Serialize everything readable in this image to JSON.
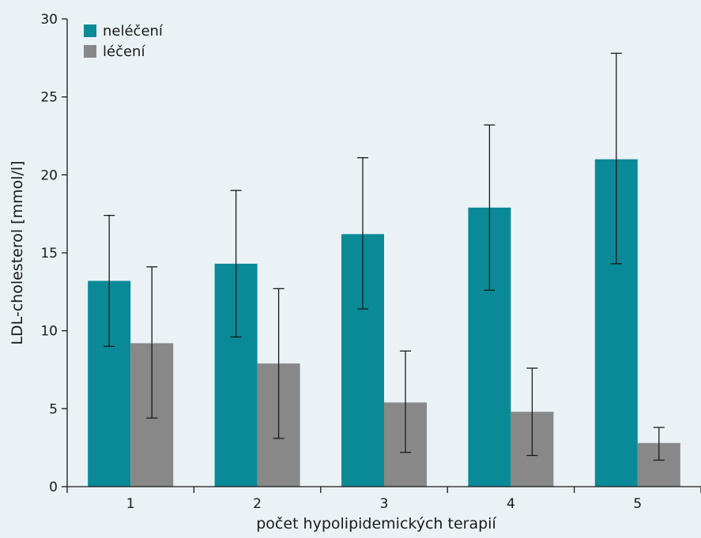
{
  "chart_data": {
    "type": "bar",
    "title": "",
    "xlabel": "počet hypolipidemických terapií",
    "ylabel": "LDL-cholesterol [mmol/l]",
    "categories": [
      "1",
      "2",
      "3",
      "4",
      "5"
    ],
    "ylim": [
      0,
      30
    ],
    "yticks": [
      0,
      5,
      10,
      15,
      20,
      25,
      30
    ],
    "grid": false,
    "legend_position": "top-left",
    "series": [
      {
        "name": "neléčení",
        "color": "#0a8a96",
        "values": [
          13.2,
          14.3,
          16.2,
          17.9,
          21.0
        ],
        "error_low": [
          9.0,
          9.6,
          11.4,
          12.6,
          14.3
        ],
        "error_high": [
          17.4,
          19.0,
          21.1,
          23.2,
          27.8
        ]
      },
      {
        "name": "léčení",
        "color": "#888888",
        "values": [
          9.2,
          7.9,
          5.4,
          4.8,
          2.8
        ],
        "error_low": [
          4.4,
          3.1,
          2.2,
          2.0,
          1.7
        ],
        "error_high": [
          14.1,
          12.7,
          8.7,
          7.6,
          3.8
        ]
      }
    ]
  }
}
